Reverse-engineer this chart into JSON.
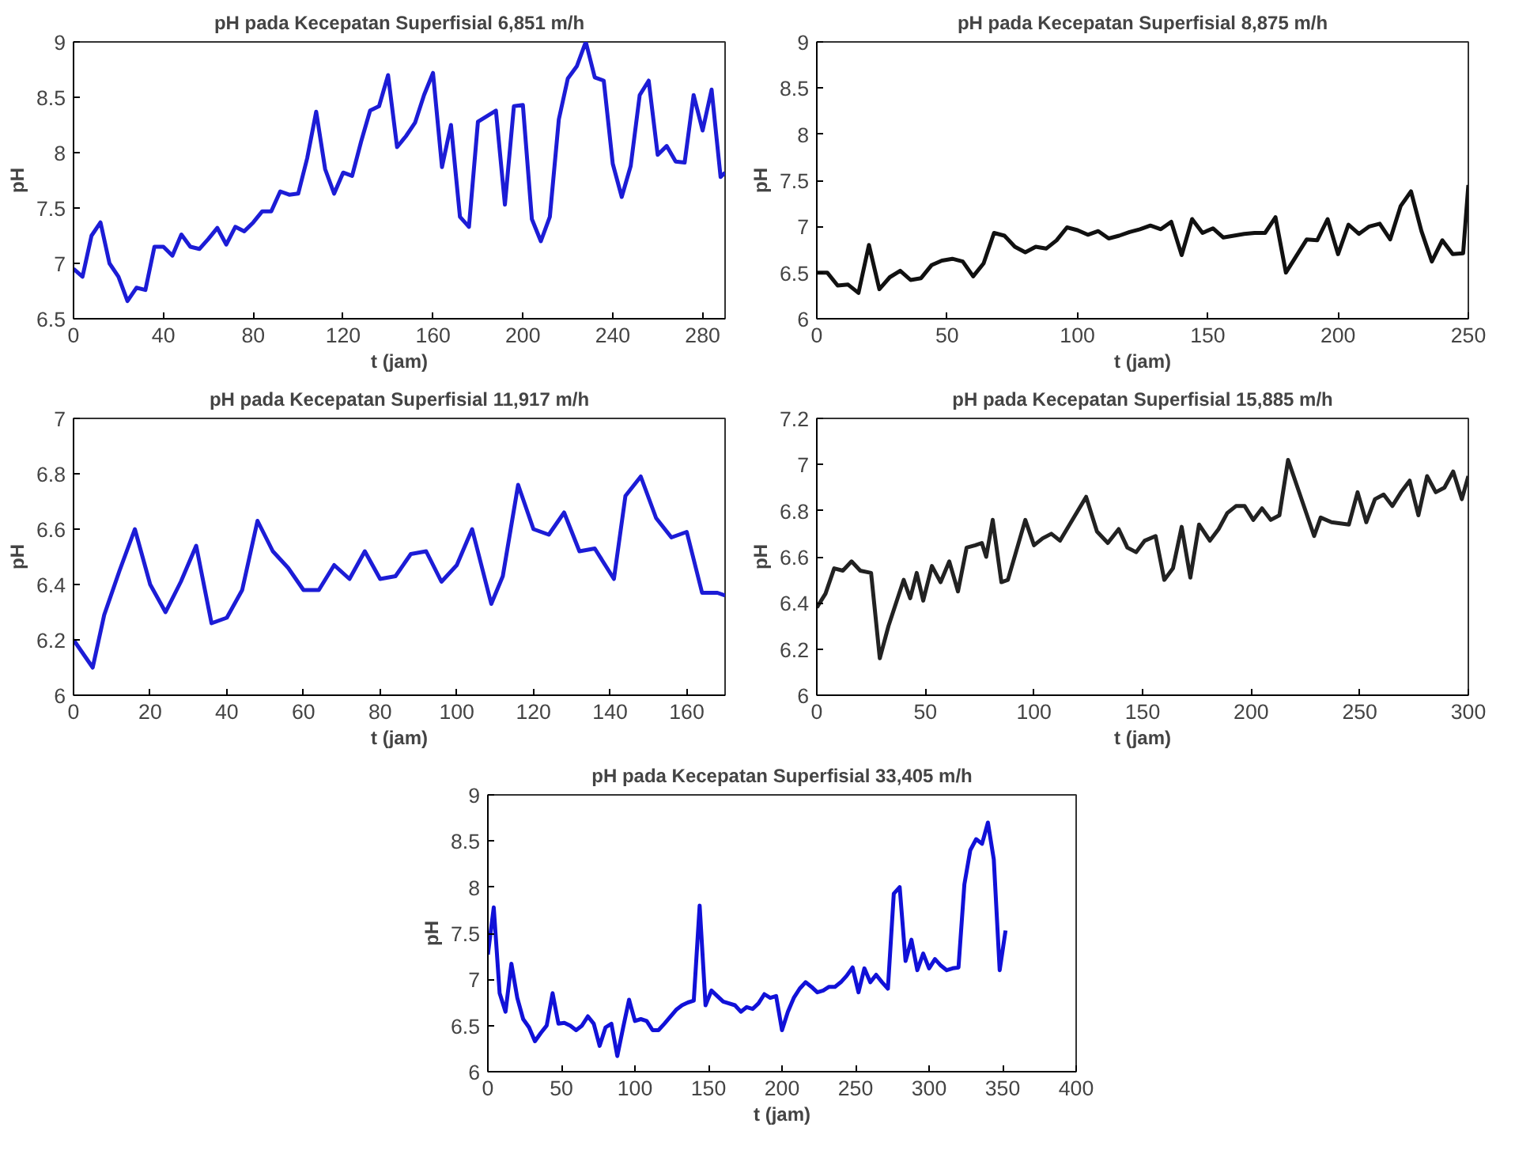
{
  "chart_data": [
    {
      "type": "line",
      "title": "pH pada Kecepatan Superfisial 6,851 m/h",
      "xlabel": "t (jam)",
      "ylabel": "pH",
      "xlim": [
        0,
        290
      ],
      "ylim": [
        6.5,
        9
      ],
      "xticks": [
        0,
        40,
        80,
        120,
        160,
        200,
        240,
        280
      ],
      "yticks": [
        6.5,
        7,
        7.5,
        8,
        8.5,
        9
      ],
      "grid": false,
      "marker": "none",
      "line_style": "solid",
      "series": [
        {
          "color": "#1c1cd6",
          "x": [
            0,
            4,
            8,
            12,
            16,
            20,
            24,
            28,
            32,
            36,
            40,
            44,
            48,
            52,
            56,
            60,
            64,
            68,
            72,
            76,
            80,
            84,
            88,
            92,
            96,
            100,
            104,
            108,
            112,
            116,
            120,
            124,
            128,
            132,
            136,
            140,
            144,
            148,
            152,
            156,
            160,
            164,
            168,
            172,
            176,
            180,
            184,
            188,
            192,
            196,
            200,
            204,
            208,
            212,
            216,
            220,
            224,
            228,
            232,
            236,
            240,
            244,
            248,
            252,
            256,
            260,
            264,
            268,
            272,
            276,
            280,
            284,
            288,
            290
          ],
          "values": [
            6.95,
            6.88,
            7.25,
            7.37,
            7.0,
            6.88,
            6.66,
            6.78,
            6.76,
            7.15,
            7.15,
            7.07,
            7.26,
            7.15,
            7.13,
            7.22,
            7.32,
            7.17,
            7.33,
            7.29,
            7.37,
            7.47,
            7.47,
            7.65,
            7.62,
            7.63,
            7.95,
            8.37,
            7.85,
            7.63,
            7.82,
            7.79,
            8.1,
            8.38,
            8.42,
            8.7,
            8.05,
            8.15,
            8.27,
            8.52,
            8.72,
            7.87,
            8.25,
            7.42,
            7.33,
            8.28,
            8.33,
            8.38,
            7.53,
            8.42,
            8.43,
            7.4,
            7.2,
            7.42,
            8.3,
            8.67,
            8.78,
            9.0,
            8.68,
            8.65,
            7.9,
            7.6,
            7.88,
            8.52,
            8.65,
            7.98,
            8.06,
            7.92,
            7.91,
            8.52,
            8.2,
            8.57,
            7.78,
            7.82
          ]
        }
      ]
    },
    {
      "type": "line",
      "title": "pH pada Kecepatan Superfisial 8,875 m/h",
      "xlabel": "t (jam)",
      "ylabel": "pH",
      "xlim": [
        0,
        250
      ],
      "ylim": [
        6,
        9
      ],
      "xticks": [
        0,
        50,
        100,
        150,
        200,
        250
      ],
      "yticks": [
        6,
        6.5,
        7,
        7.5,
        8,
        8.5,
        9
      ],
      "grid": false,
      "marker": "none",
      "line_style": "solid",
      "series": [
        {
          "color": "#111111",
          "x": [
            0,
            4,
            8,
            12,
            16,
            20,
            24,
            28,
            32,
            36,
            40,
            44,
            48,
            52,
            56,
            60,
            64,
            68,
            72,
            76,
            80,
            84,
            88,
            92,
            96,
            100,
            104,
            108,
            112,
            116,
            120,
            124,
            128,
            132,
            136,
            140,
            144,
            148,
            152,
            156,
            160,
            164,
            168,
            172,
            176,
            180,
            184,
            188,
            192,
            196,
            200,
            204,
            208,
            212,
            216,
            220,
            224,
            228,
            232,
            236,
            240,
            244,
            248,
            250
          ],
          "values": [
            6.5,
            6.5,
            6.36,
            6.37,
            6.28,
            6.8,
            6.32,
            6.45,
            6.52,
            6.42,
            6.44,
            6.58,
            6.63,
            6.65,
            6.62,
            6.46,
            6.6,
            6.93,
            6.9,
            6.78,
            6.72,
            6.78,
            6.76,
            6.85,
            6.99,
            6.96,
            6.91,
            6.95,
            6.87,
            6.9,
            6.94,
            6.97,
            7.01,
            6.97,
            7.05,
            6.69,
            7.08,
            6.93,
            6.98,
            6.88,
            6.9,
            6.92,
            6.93,
            6.93,
            7.1,
            6.5,
            6.68,
            6.86,
            6.85,
            7.08,
            6.7,
            7.02,
            6.92,
            7.0,
            7.03,
            6.86,
            7.22,
            7.38,
            6.95,
            6.62,
            6.85,
            6.7,
            6.71,
            7.45
          ]
        }
      ]
    },
    {
      "type": "line",
      "title": "pH pada Kecepatan Superfisial 11,917 m/h",
      "xlabel": "t (jam)",
      "ylabel": "pH",
      "xlim": [
        0,
        170
      ],
      "ylim": [
        6,
        7
      ],
      "xticks": [
        0,
        20,
        40,
        60,
        80,
        100,
        120,
        140,
        160
      ],
      "yticks": [
        6,
        6.2,
        6.4,
        6.6,
        6.8,
        7
      ],
      "grid": false,
      "marker": "none",
      "line_style": "solid",
      "series": [
        {
          "color": "#1c1cd6",
          "x": [
            0,
            5,
            8,
            12,
            16,
            20,
            24,
            28,
            32,
            36,
            40,
            44,
            48,
            52,
            56,
            60,
            64,
            68,
            72,
            76,
            80,
            84,
            88,
            92,
            96,
            100,
            104,
            109,
            112,
            116,
            120,
            124,
            128,
            132,
            136,
            141,
            144,
            148,
            152,
            156,
            160,
            164,
            168,
            170
          ],
          "values": [
            6.2,
            6.1,
            6.29,
            6.45,
            6.6,
            6.4,
            6.3,
            6.41,
            6.54,
            6.26,
            6.28,
            6.38,
            6.63,
            6.52,
            6.46,
            6.38,
            6.38,
            6.47,
            6.42,
            6.52,
            6.42,
            6.43,
            6.51,
            6.52,
            6.41,
            6.47,
            6.6,
            6.33,
            6.43,
            6.76,
            6.6,
            6.58,
            6.66,
            6.52,
            6.53,
            6.42,
            6.72,
            6.79,
            6.64,
            6.57,
            6.59,
            6.37,
            6.37,
            6.36
          ]
        }
      ]
    },
    {
      "type": "line",
      "title": "pH pada Kecepatan Superfisial 15,885 m/h",
      "xlabel": "t (jam)",
      "ylabel": "pH",
      "xlim": [
        0,
        300
      ],
      "ylim": [
        6,
        7.2
      ],
      "xticks": [
        0,
        50,
        100,
        150,
        200,
        250,
        300
      ],
      "yticks": [
        6,
        6.2,
        6.4,
        6.6,
        6.8,
        7,
        7.2
      ],
      "grid": false,
      "marker": "none",
      "line_style": "solid",
      "series": [
        {
          "color": "#222222",
          "x": [
            0,
            4,
            8,
            12,
            16,
            20,
            25,
            29,
            33,
            40,
            43,
            46,
            49,
            53,
            57,
            61,
            65,
            69,
            73,
            76,
            78,
            81,
            85,
            88,
            96,
            100,
            104,
            108,
            112,
            124,
            129,
            134,
            139,
            143,
            147,
            151,
            156,
            160,
            164,
            168,
            172,
            176,
            181,
            185,
            189,
            193,
            197,
            201,
            205,
            209,
            213,
            217,
            229,
            232,
            237,
            245,
            249,
            253,
            257,
            261,
            265,
            269,
            273,
            277,
            281,
            285,
            289,
            293,
            297,
            300
          ],
          "values": [
            6.38,
            6.44,
            6.55,
            6.54,
            6.58,
            6.54,
            6.53,
            6.16,
            6.3,
            6.5,
            6.42,
            6.53,
            6.41,
            6.56,
            6.49,
            6.58,
            6.45,
            6.64,
            6.65,
            6.66,
            6.6,
            6.76,
            6.49,
            6.5,
            6.76,
            6.65,
            6.68,
            6.7,
            6.67,
            6.86,
            6.71,
            6.66,
            6.72,
            6.64,
            6.62,
            6.67,
            6.69,
            6.5,
            6.55,
            6.73,
            6.51,
            6.74,
            6.67,
            6.72,
            6.79,
            6.82,
            6.82,
            6.76,
            6.81,
            6.76,
            6.78,
            7.02,
            6.69,
            6.77,
            6.75,
            6.74,
            6.88,
            6.75,
            6.85,
            6.87,
            6.82,
            6.88,
            6.93,
            6.78,
            6.95,
            6.88,
            6.9,
            6.97,
            6.85,
            6.95
          ]
        }
      ]
    },
    {
      "type": "line",
      "title": "pH pada Kecepatan Superfisial 33,405 m/h",
      "xlabel": "t (jam)",
      "ylabel": "pH",
      "xlim": [
        0,
        400
      ],
      "ylim": [
        6,
        9
      ],
      "xticks": [
        0,
        50,
        100,
        150,
        200,
        250,
        300,
        350,
        400
      ],
      "yticks": [
        6,
        6.5,
        7,
        7.5,
        8,
        8.5,
        9
      ],
      "grid": false,
      "marker": "none",
      "line_style": "solid",
      "series": [
        {
          "color": "#1111d8",
          "x": [
            0,
            4,
            8,
            12,
            16,
            20,
            24,
            28,
            32,
            36,
            40,
            44,
            48,
            52,
            56,
            60,
            64,
            68,
            72,
            76,
            80,
            84,
            88,
            92,
            96,
            100,
            104,
            108,
            112,
            116,
            120,
            128,
            132,
            136,
            140,
            144,
            148,
            152,
            156,
            160,
            168,
            172,
            176,
            180,
            184,
            188,
            192,
            196,
            200,
            204,
            208,
            212,
            216,
            220,
            224,
            228,
            232,
            236,
            240,
            244,
            248,
            252,
            256,
            260,
            264,
            268,
            272,
            276,
            280,
            284,
            288,
            292,
            296,
            300,
            304,
            308,
            312,
            316,
            320,
            324,
            328,
            332,
            336,
            340,
            344,
            348,
            352
          ],
          "values": [
            7.27,
            7.78,
            6.85,
            6.65,
            7.17,
            6.8,
            6.57,
            6.48,
            6.33,
            6.42,
            6.5,
            6.85,
            6.52,
            6.53,
            6.5,
            6.45,
            6.5,
            6.6,
            6.52,
            6.28,
            6.48,
            6.52,
            6.17,
            6.48,
            6.78,
            6.55,
            6.57,
            6.55,
            6.45,
            6.45,
            6.52,
            6.67,
            6.72,
            6.75,
            6.77,
            7.8,
            6.72,
            6.88,
            6.82,
            6.76,
            6.72,
            6.65,
            6.7,
            6.68,
            6.74,
            6.84,
            6.8,
            6.82,
            6.45,
            6.65,
            6.8,
            6.9,
            6.97,
            6.92,
            6.86,
            6.88,
            6.92,
            6.92,
            6.97,
            7.04,
            7.13,
            6.86,
            7.12,
            6.97,
            7.05,
            6.97,
            6.9,
            7.93,
            8.0,
            7.2,
            7.43,
            7.1,
            7.28,
            7.12,
            7.22,
            7.15,
            7.1,
            7.12,
            7.13,
            8.03,
            8.4,
            8.52,
            8.47,
            8.7,
            8.3,
            7.1,
            7.53
          ]
        }
      ]
    }
  ]
}
